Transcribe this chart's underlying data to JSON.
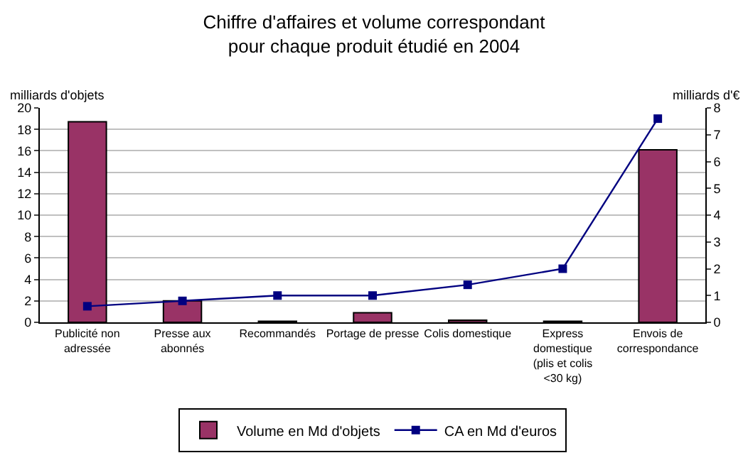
{
  "chart_data": {
    "type": "bar",
    "title": "Chiffre d'affaires et volume correspondant\npour chaque produit étudié en 2004",
    "ylabel": "milliards d'objets",
    "y2label": "milliards d'€",
    "categories": [
      "Publicité non\nadressée",
      "Presse aux\nabonnés",
      "Recommandés",
      "Portage de presse",
      "Colis domestique",
      "Express\ndomestique\n(plis et colis\n<30 kg)",
      "Envois de\ncorrespondance"
    ],
    "series": [
      {
        "name": "Volume en Md d'objets",
        "color": "#993366",
        "values": [
          18.7,
          2.0,
          0.1,
          0.9,
          0.2,
          0.1,
          16.1
        ]
      },
      {
        "name": "CA en Md d'euros",
        "type": "line",
        "axis": "y2",
        "color": "#000080",
        "marker": "square",
        "values": [
          0.6,
          0.8,
          1.0,
          1.0,
          1.4,
          2.0,
          7.6
        ]
      }
    ],
    "ylim": [
      0,
      20
    ],
    "yticks": [
      0,
      2,
      4,
      6,
      8,
      10,
      12,
      14,
      16,
      18,
      20
    ],
    "y2lim": [
      0,
      8
    ],
    "y2ticks": [
      0,
      1,
      2,
      3,
      4,
      5,
      6,
      7,
      8
    ],
    "grid": "y",
    "legend": "bottom"
  }
}
